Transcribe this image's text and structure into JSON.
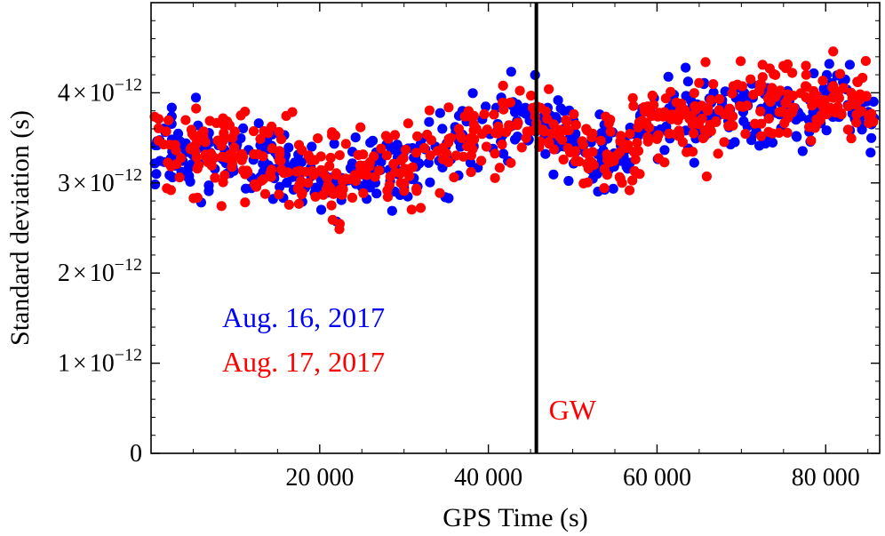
{
  "chart_data": {
    "type": "scatter",
    "title": "",
    "xlabel": "GPS Time (s)",
    "ylabel": "Standard deviation (s)",
    "xlim": [
      0,
      86400
    ],
    "ylim": [
      0,
      5e-12
    ],
    "x_ticks": [
      {
        "value": 20000,
        "label": "20 000"
      },
      {
        "value": 40000,
        "label": "40 000"
      },
      {
        "value": 60000,
        "label": "60 000"
      },
      {
        "value": 80000,
        "label": "80 000"
      }
    ],
    "y_ticks": [
      {
        "value": 0,
        "label": "0"
      },
      {
        "value": 1e-12,
        "mantissa": "1",
        "times": "×",
        "base": "10",
        "exponent": "−12"
      },
      {
        "value": 2e-12,
        "mantissa": "2",
        "times": "×",
        "base": "10",
        "exponent": "−12"
      },
      {
        "value": 3e-12,
        "mantissa": "3",
        "times": "×",
        "base": "10",
        "exponent": "−12"
      },
      {
        "value": 4e-12,
        "mantissa": "4",
        "times": "×",
        "base": "10",
        "exponent": "−12"
      }
    ],
    "event_line": {
      "x": 45690,
      "label": "GW",
      "color": "#ff0000"
    },
    "legend": {
      "placement": "left-middle"
    },
    "series": [
      {
        "name": "Aug. 16, 2017",
        "color": "#0000ff",
        "trend_x": [
          0,
          10000,
          20000,
          30000,
          40000,
          45690,
          50000,
          55000,
          60000,
          70000,
          80000,
          86400
        ],
        "trend_y": [
          3.35e-12,
          3.3e-12,
          3e-12,
          3.2e-12,
          3.6e-12,
          3.75e-12,
          3.45e-12,
          3.35e-12,
          3.65e-12,
          3.8e-12,
          3.85e-12,
          3.75e-12
        ],
        "spread": 2.1e-13,
        "n_points": 560,
        "seed": 17
      },
      {
        "name": "Aug. 17, 2017",
        "color": "#ff0000",
        "trend_x": [
          0,
          10000,
          20000,
          30000,
          40000,
          45690,
          50000,
          55000,
          60000,
          70000,
          80000,
          86400
        ],
        "trend_y": [
          3.45e-12,
          3.35e-12,
          3.05e-12,
          3.2e-12,
          3.6e-12,
          3.7e-12,
          3.45e-12,
          3.3e-12,
          3.65e-12,
          3.85e-12,
          3.95e-12,
          3.8e-12
        ],
        "spread": 2.2e-13,
        "n_points": 560,
        "seed": 71
      }
    ]
  }
}
